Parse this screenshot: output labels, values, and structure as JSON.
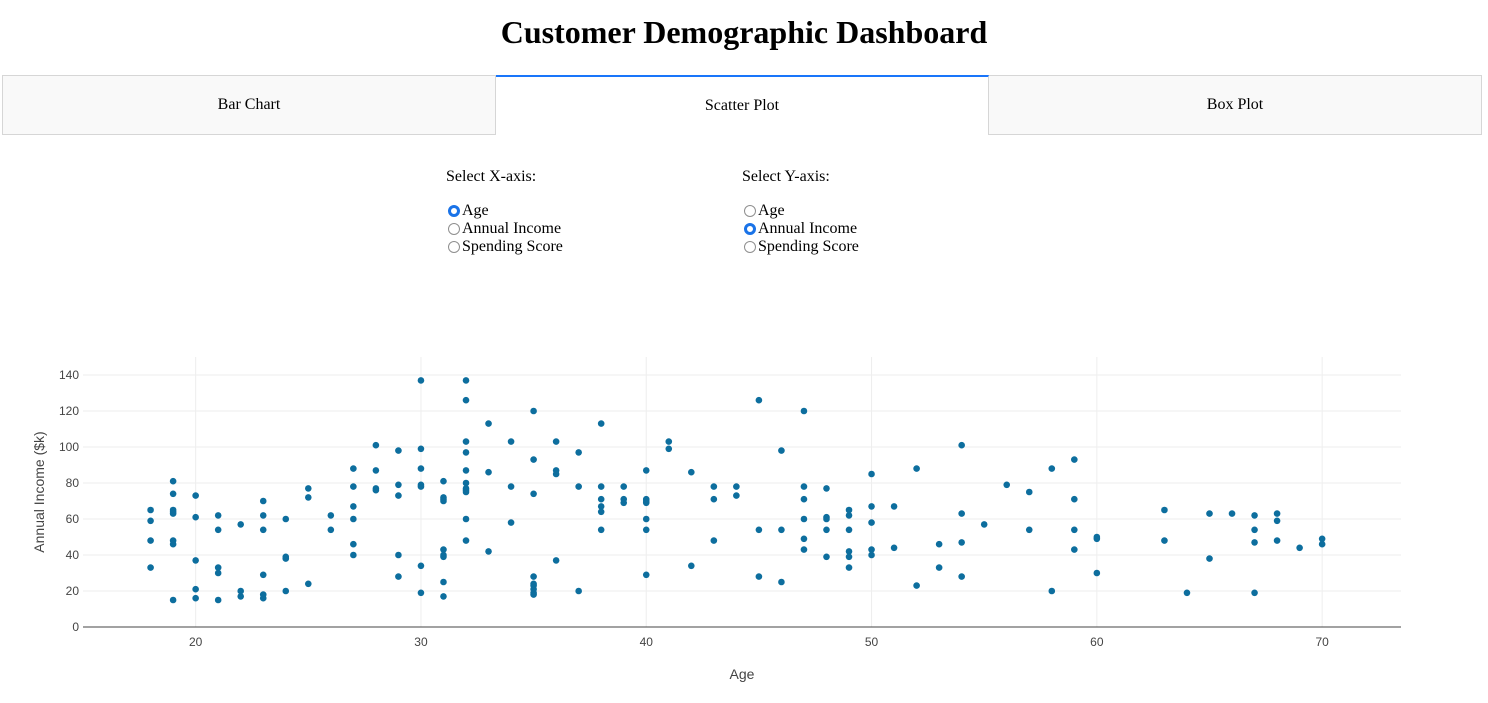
{
  "title": "Customer Demographic Dashboard",
  "tabs": [
    {
      "label": "Bar Chart",
      "selected": false
    },
    {
      "label": "Scatter Plot",
      "selected": true
    },
    {
      "label": "Box Plot",
      "selected": false
    }
  ],
  "x_selector": {
    "label": "Select X-axis:",
    "options": [
      "Age",
      "Annual Income",
      "Spending Score"
    ],
    "selected": "Age"
  },
  "y_selector": {
    "label": "Select Y-axis:",
    "options": [
      "Age",
      "Annual Income",
      "Spending Score"
    ],
    "selected": "Annual Income"
  },
  "colors": {
    "marker": "#0d6e9e",
    "grid": "#eeeeee",
    "accent": "#1975fa"
  },
  "chart_data": {
    "type": "scatter",
    "xlabel": "Age",
    "ylabel": "Annual Income ($k)",
    "xlim": [
      15,
      73.5
    ],
    "ylim": [
      0,
      150
    ],
    "xticks": [
      20,
      30,
      40,
      50,
      60,
      70
    ],
    "yticks": [
      0,
      20,
      40,
      60,
      80,
      100,
      120,
      140
    ],
    "grid": true,
    "points": [
      [
        18,
        65
      ],
      [
        18,
        59
      ],
      [
        18,
        48
      ],
      [
        18,
        33
      ],
      [
        19,
        81
      ],
      [
        19,
        74
      ],
      [
        19,
        65
      ],
      [
        19,
        64
      ],
      [
        19,
        63
      ],
      [
        19,
        48
      ],
      [
        19,
        46
      ],
      [
        19,
        15
      ],
      [
        20,
        73
      ],
      [
        20,
        61
      ],
      [
        20,
        37
      ],
      [
        20,
        21
      ],
      [
        20,
        16
      ],
      [
        21,
        62
      ],
      [
        21,
        54
      ],
      [
        21,
        33
      ],
      [
        21,
        30
      ],
      [
        21,
        15
      ],
      [
        22,
        57
      ],
      [
        22,
        20
      ],
      [
        22,
        17
      ],
      [
        23,
        70
      ],
      [
        23,
        62
      ],
      [
        23,
        54
      ],
      [
        23,
        29
      ],
      [
        23,
        18
      ],
      [
        23,
        16
      ],
      [
        24,
        60
      ],
      [
        24,
        39
      ],
      [
        24,
        38
      ],
      [
        24,
        20
      ],
      [
        25,
        77
      ],
      [
        25,
        72
      ],
      [
        25,
        24
      ],
      [
        26,
        62
      ],
      [
        26,
        54
      ],
      [
        27,
        88
      ],
      [
        27,
        78
      ],
      [
        27,
        67
      ],
      [
        27,
        60
      ],
      [
        27,
        46
      ],
      [
        27,
        40
      ],
      [
        28,
        101
      ],
      [
        28,
        87
      ],
      [
        28,
        77
      ],
      [
        28,
        76
      ],
      [
        29,
        98
      ],
      [
        29,
        79
      ],
      [
        29,
        73
      ],
      [
        29,
        40
      ],
      [
        29,
        28
      ],
      [
        30,
        137
      ],
      [
        30,
        99
      ],
      [
        30,
        88
      ],
      [
        30,
        79
      ],
      [
        30,
        78
      ],
      [
        30,
        34
      ],
      [
        30,
        19
      ],
      [
        31,
        81
      ],
      [
        31,
        72
      ],
      [
        31,
        71
      ],
      [
        31,
        70
      ],
      [
        31,
        43
      ],
      [
        31,
        40
      ],
      [
        31,
        39
      ],
      [
        31,
        25
      ],
      [
        31,
        17
      ],
      [
        32,
        137
      ],
      [
        32,
        126
      ],
      [
        32,
        103
      ],
      [
        32,
        97
      ],
      [
        32,
        87
      ],
      [
        32,
        80
      ],
      [
        32,
        77
      ],
      [
        32,
        76
      ],
      [
        32,
        75
      ],
      [
        32,
        60
      ],
      [
        32,
        48
      ],
      [
        33,
        113
      ],
      [
        33,
        86
      ],
      [
        33,
        42
      ],
      [
        34,
        103
      ],
      [
        34,
        78
      ],
      [
        34,
        58
      ],
      [
        35,
        120
      ],
      [
        35,
        93
      ],
      [
        35,
        74
      ],
      [
        35,
        28
      ],
      [
        35,
        24
      ],
      [
        35,
        23
      ],
      [
        35,
        21
      ],
      [
        35,
        19
      ],
      [
        35,
        18
      ],
      [
        36,
        103
      ],
      [
        36,
        87
      ],
      [
        36,
        85
      ],
      [
        36,
        37
      ],
      [
        37,
        97
      ],
      [
        37,
        78
      ],
      [
        37,
        20
      ],
      [
        38,
        113
      ],
      [
        38,
        78
      ],
      [
        38,
        71
      ],
      [
        38,
        67
      ],
      [
        38,
        64
      ],
      [
        38,
        54
      ],
      [
        39,
        78
      ],
      [
        39,
        71
      ],
      [
        39,
        69
      ],
      [
        40,
        87
      ],
      [
        40,
        71
      ],
      [
        40,
        70
      ],
      [
        40,
        69
      ],
      [
        40,
        60
      ],
      [
        40,
        54
      ],
      [
        40,
        29
      ],
      [
        41,
        103
      ],
      [
        41,
        99
      ],
      [
        42,
        86
      ],
      [
        42,
        34
      ],
      [
        43,
        78
      ],
      [
        43,
        71
      ],
      [
        43,
        48
      ],
      [
        44,
        78
      ],
      [
        44,
        73
      ],
      [
        45,
        126
      ],
      [
        45,
        54
      ],
      [
        45,
        28
      ],
      [
        46,
        98
      ],
      [
        46,
        54
      ],
      [
        46,
        25
      ],
      [
        47,
        120
      ],
      [
        47,
        78
      ],
      [
        47,
        71
      ],
      [
        47,
        60
      ],
      [
        47,
        49
      ],
      [
        47,
        43
      ],
      [
        48,
        77
      ],
      [
        48,
        61
      ],
      [
        48,
        60
      ],
      [
        48,
        54
      ],
      [
        48,
        39
      ],
      [
        49,
        65
      ],
      [
        49,
        62
      ],
      [
        49,
        54
      ],
      [
        49,
        42
      ],
      [
        49,
        39
      ],
      [
        49,
        33
      ],
      [
        50,
        85
      ],
      [
        50,
        67
      ],
      [
        50,
        58
      ],
      [
        50,
        43
      ],
      [
        50,
        40
      ],
      [
        51,
        67
      ],
      [
        51,
        44
      ],
      [
        52,
        88
      ],
      [
        52,
        23
      ],
      [
        53,
        46
      ],
      [
        53,
        33
      ],
      [
        54,
        101
      ],
      [
        54,
        63
      ],
      [
        54,
        47
      ],
      [
        54,
        28
      ],
      [
        55,
        57
      ],
      [
        56,
        79
      ],
      [
        57,
        75
      ],
      [
        57,
        54
      ],
      [
        58,
        88
      ],
      [
        58,
        20
      ],
      [
        59,
        93
      ],
      [
        59,
        71
      ],
      [
        59,
        54
      ],
      [
        59,
        43
      ],
      [
        60,
        50
      ],
      [
        60,
        49
      ],
      [
        60,
        30
      ],
      [
        63,
        65
      ],
      [
        63,
        48
      ],
      [
        64,
        19
      ],
      [
        65,
        63
      ],
      [
        65,
        38
      ],
      [
        66,
        63
      ],
      [
        67,
        62
      ],
      [
        67,
        54
      ],
      [
        67,
        47
      ],
      [
        67,
        19
      ],
      [
        68,
        63
      ],
      [
        68,
        59
      ],
      [
        68,
        48
      ],
      [
        69,
        44
      ],
      [
        70,
        49
      ],
      [
        70,
        46
      ]
    ]
  }
}
